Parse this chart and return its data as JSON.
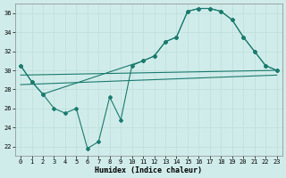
{
  "background_color": "#d0ecea",
  "grid_color": "#b8dbd8",
  "line_color": "#1a7a6e",
  "xlabel": "Humidex (Indice chaleur)",
  "xlim": [
    -0.5,
    23.5
  ],
  "ylim": [
    21.0,
    37.0
  ],
  "yticks": [
    22,
    24,
    26,
    28,
    30,
    32,
    34,
    36
  ],
  "xticks": [
    0,
    1,
    2,
    3,
    4,
    5,
    6,
    7,
    8,
    9,
    10,
    11,
    12,
    13,
    14,
    15,
    16,
    17,
    18,
    19,
    20,
    21,
    22,
    23
  ],
  "curve1_x": [
    0,
    1,
    2,
    3,
    4,
    5,
    6,
    7,
    8,
    9,
    10,
    11,
    12,
    13,
    14,
    15,
    16,
    17,
    18,
    19,
    20,
    21,
    22,
    23
  ],
  "curve1_y": [
    30.5,
    28.8,
    27.5,
    26.0,
    25.5,
    26.0,
    21.8,
    22.5,
    27.2,
    24.8,
    30.5,
    31.0,
    31.5,
    33.0,
    33.5,
    36.2,
    36.5,
    36.5,
    36.2,
    35.3,
    33.5,
    32.0,
    30.5,
    30.0
  ],
  "curve2_x": [
    0,
    1,
    2,
    11,
    12,
    13,
    14,
    15,
    16,
    17,
    18,
    19,
    20,
    21,
    22,
    23
  ],
  "curve2_y": [
    30.5,
    28.8,
    27.5,
    31.0,
    31.5,
    33.0,
    33.5,
    36.2,
    36.5,
    36.5,
    36.2,
    35.3,
    33.5,
    32.0,
    30.5,
    30.0
  ],
  "line3_x": [
    0,
    23
  ],
  "line3_y": [
    28.5,
    29.5
  ],
  "line4_x": [
    0,
    23
  ],
  "line4_y": [
    29.5,
    30.0
  ]
}
